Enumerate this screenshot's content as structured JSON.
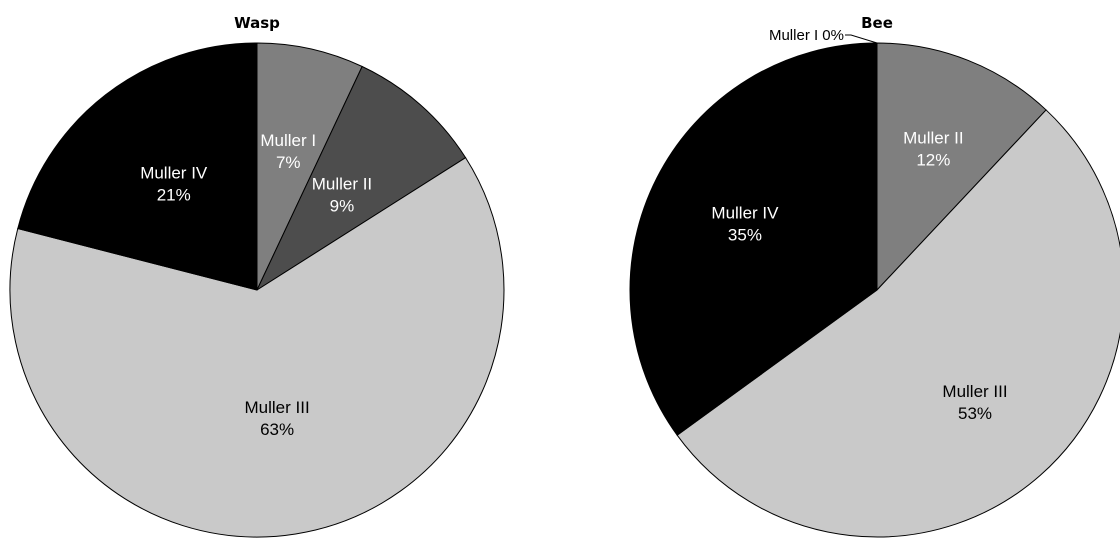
{
  "chart_data": [
    {
      "type": "pie",
      "title": "Wasp",
      "slices": [
        {
          "label": "Muller I",
          "value": 7,
          "display": "7%",
          "color": "#7f7f7f",
          "label_color": "#ffffff"
        },
        {
          "label": "Muller II",
          "value": 9,
          "display": "9%",
          "color": "#4d4d4d",
          "label_color": "#ffffff"
        },
        {
          "label": "Muller III",
          "value": 63,
          "display": "63%",
          "color": "#c9c9c9",
          "label_color": "#000000"
        },
        {
          "label": "Muller IV",
          "value": 21,
          "display": "21%",
          "color": "#000000",
          "label_color": "#ffffff"
        }
      ]
    },
    {
      "type": "pie",
      "title": "Bee",
      "slices": [
        {
          "label": "Muller I",
          "value": 0,
          "display": "0%",
          "color": "#9a9a9a",
          "label_color": "#000000",
          "callout": true
        },
        {
          "label": "Muller II",
          "value": 12,
          "display": "12%",
          "color": "#7f7f7f",
          "label_color": "#ffffff"
        },
        {
          "label": "Muller III",
          "value": 53,
          "display": "53%",
          "color": "#c9c9c9",
          "label_color": "#000000"
        },
        {
          "label": "Muller IV",
          "value": 35,
          "display": "35%",
          "color": "#000000",
          "label_color": "#ffffff"
        }
      ]
    }
  ]
}
